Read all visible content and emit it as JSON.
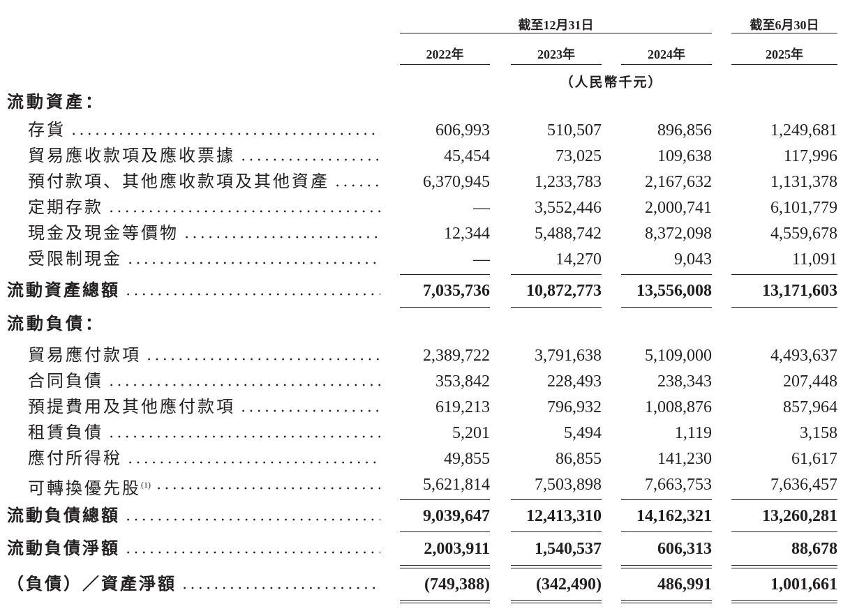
{
  "header": {
    "period_group_1": "截至12月31日",
    "period_group_2": "截至6月30日",
    "years": [
      "2022年",
      "2023年",
      "2024年",
      "2025年"
    ],
    "unit": "（人民幣千元）"
  },
  "sections": [
    {
      "title": "流動資產：",
      "rows": [
        {
          "label": "存貨",
          "values": [
            "606,993",
            "510,507",
            "896,856",
            "1,249,681"
          ]
        },
        {
          "label": "貿易應收款項及應收票據",
          "values": [
            "45,454",
            "73,025",
            "109,638",
            "117,996"
          ]
        },
        {
          "label": "預付款項、其他應收款項及其他資產",
          "values": [
            "6,370,945",
            "1,233,783",
            "2,167,632",
            "1,131,378"
          ]
        },
        {
          "label": "定期存款",
          "values": [
            "—",
            "3,552,446",
            "2,000,741",
            "6,101,779"
          ]
        },
        {
          "label": "現金及現金等價物",
          "values": [
            "12,344",
            "5,488,742",
            "8,372,098",
            "4,559,678"
          ]
        },
        {
          "label": "受限制現金",
          "values": [
            "—",
            "14,270",
            "9,043",
            "11,091"
          ]
        }
      ],
      "total": {
        "label": "流動資產總額",
        "values": [
          "7,035,736",
          "10,872,773",
          "13,556,008",
          "13,171,603"
        ]
      }
    },
    {
      "title": "流動負債：",
      "rows": [
        {
          "label": "貿易應付款項",
          "values": [
            "2,389,722",
            "3,791,638",
            "5,109,000",
            "4,493,637"
          ]
        },
        {
          "label": "合同負債",
          "values": [
            "353,842",
            "228,493",
            "238,343",
            "207,448"
          ]
        },
        {
          "label": "預提費用及其他應付款項",
          "values": [
            "619,213",
            "796,932",
            "1,008,876",
            "857,964"
          ]
        },
        {
          "label": "租賃負債",
          "values": [
            "5,201",
            "5,494",
            "1,119",
            "3,158"
          ]
        },
        {
          "label": "應付所得稅",
          "values": [
            "49,855",
            "86,855",
            "141,230",
            "61,617"
          ]
        },
        {
          "label": "可轉換優先股",
          "note": "(1)",
          "values": [
            "5,621,814",
            "7,503,898",
            "7,663,753",
            "7,636,457"
          ]
        }
      ],
      "total": {
        "label": "流動負債總額",
        "values": [
          "9,039,647",
          "12,413,310",
          "14,162,321",
          "13,260,281"
        ]
      }
    }
  ],
  "summary": [
    {
      "label": "流動負債淨額",
      "values": [
        "2,003,911",
        "1,540,537",
        "606,313",
        "88,678"
      ]
    },
    {
      "label": "（負債）／資產淨額",
      "values": [
        "(749,388)",
        "(342,490)",
        "486,991",
        "1,001,661"
      ]
    }
  ]
}
